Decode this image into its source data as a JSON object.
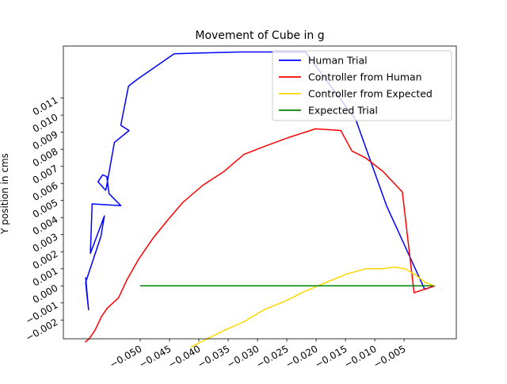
{
  "chart_data": {
    "type": "line",
    "title": "Movement of Cube in g",
    "xlabel": "",
    "ylabel": "Y position in cms",
    "xlim": [
      -0.0631,
      0.0039
    ],
    "ylim": [
      -0.0031,
      0.01405
    ],
    "x_ticks": [
      -0.05,
      -0.045,
      -0.04,
      -0.035,
      -0.03,
      -0.025,
      -0.02,
      -0.015,
      -0.01,
      -0.005
    ],
    "x_tick_labels": [
      "−0.050",
      "−0.045",
      "−0.040",
      "−0.035",
      "−0.030",
      "−0.025",
      "−0.020",
      "−0.015",
      "−0.010",
      "−0.005"
    ],
    "y_ticks": [
      -0.002,
      -0.001,
      0.0,
      0.001,
      0.002,
      0.003,
      0.004,
      0.005,
      0.006,
      0.007,
      0.008,
      0.009,
      0.01,
      0.011
    ],
    "y_tick_labels": [
      "−0.002",
      "−0.001",
      "0.000",
      "0.001",
      "0.002",
      "0.003",
      "0.004",
      "0.005",
      "0.006",
      "0.007",
      "0.008",
      "0.009",
      "0.010",
      "0.011"
    ],
    "grid": false,
    "legend_position": "top-right",
    "series": [
      {
        "name": "Human Trial",
        "color": "#0000ff",
        "points": [
          [
            -0.0593,
            0.0005
          ],
          [
            -0.0588,
            -0.0014
          ],
          [
            -0.0593,
            0.0002
          ],
          [
            -0.0567,
            0.0029
          ],
          [
            -0.0561,
            0.0041
          ],
          [
            -0.0585,
            0.0019
          ],
          [
            -0.0582,
            0.0048
          ],
          [
            -0.0533,
            0.0047
          ],
          [
            -0.0553,
            0.0054
          ],
          [
            -0.0557,
            0.0064
          ],
          [
            -0.0564,
            0.0065
          ],
          [
            -0.0572,
            0.0061
          ],
          [
            -0.0559,
            0.0056
          ],
          [
            -0.0558,
            0.0057
          ],
          [
            -0.0544,
            0.0084
          ],
          [
            -0.0519,
            0.0091
          ],
          [
            -0.0533,
            0.0094
          ],
          [
            -0.052,
            0.0117
          ],
          [
            -0.0505,
            0.0121
          ],
          [
            -0.0442,
            0.0136
          ],
          [
            -0.0328,
            0.0137
          ],
          [
            -0.0218,
            0.0137
          ],
          [
            -0.0132,
            0.0097
          ],
          [
            -0.008,
            0.0047
          ],
          [
            -0.0015,
            -0.0002
          ],
          [
            0.0003,
            0.0
          ]
        ]
      },
      {
        "name": "Controller from Human",
        "color": "#ff0000",
        "points": [
          [
            -0.0594,
            -0.0033
          ],
          [
            -0.0587,
            -0.0031
          ],
          [
            -0.0577,
            -0.0026
          ],
          [
            -0.0566,
            -0.0018
          ],
          [
            -0.0556,
            -0.0013
          ],
          [
            -0.0537,
            -0.0007
          ],
          [
            -0.0522,
            0.0004
          ],
          [
            -0.0502,
            0.0016
          ],
          [
            -0.0478,
            0.0028
          ],
          [
            -0.0452,
            0.0039
          ],
          [
            -0.0427,
            0.0049
          ],
          [
            -0.0393,
            0.0059
          ],
          [
            -0.0357,
            0.0067
          ],
          [
            -0.0323,
            0.0077
          ],
          [
            -0.0286,
            0.0082
          ],
          [
            -0.0246,
            0.0087
          ],
          [
            -0.0201,
            0.0092
          ],
          [
            -0.0158,
            0.0091
          ],
          [
            -0.0139,
            0.0079
          ],
          [
            -0.0116,
            0.0075
          ],
          [
            -0.0086,
            0.0067
          ],
          [
            -0.0053,
            0.0055
          ],
          [
            -0.0033,
            -0.0004
          ],
          [
            0.0002,
            0.0
          ]
        ]
      },
      {
        "name": "Controller from Expected",
        "color": "#ffd700",
        "points": [
          [
            -0.0414,
            -0.0036
          ],
          [
            -0.0386,
            -0.0031
          ],
          [
            -0.0356,
            -0.0026
          ],
          [
            -0.0323,
            -0.0021
          ],
          [
            -0.0289,
            -0.0014
          ],
          [
            -0.0253,
            -0.0009
          ],
          [
            -0.0218,
            -0.0003
          ],
          [
            -0.0183,
            0.0002
          ],
          [
            -0.0147,
            0.0007
          ],
          [
            -0.0116,
            0.001
          ],
          [
            -0.0087,
            0.001
          ],
          [
            -0.0067,
            0.0011
          ],
          [
            -0.0048,
            0.001
          ],
          [
            -0.0029,
            0.0006
          ],
          [
            -0.0014,
            0.0002
          ],
          [
            0.0002,
            0.0
          ]
        ]
      },
      {
        "name": "Expected Trial",
        "color": "#008000",
        "points": [
          [
            -0.05,
            0.0
          ],
          [
            0.0,
            0.0
          ]
        ]
      }
    ]
  }
}
